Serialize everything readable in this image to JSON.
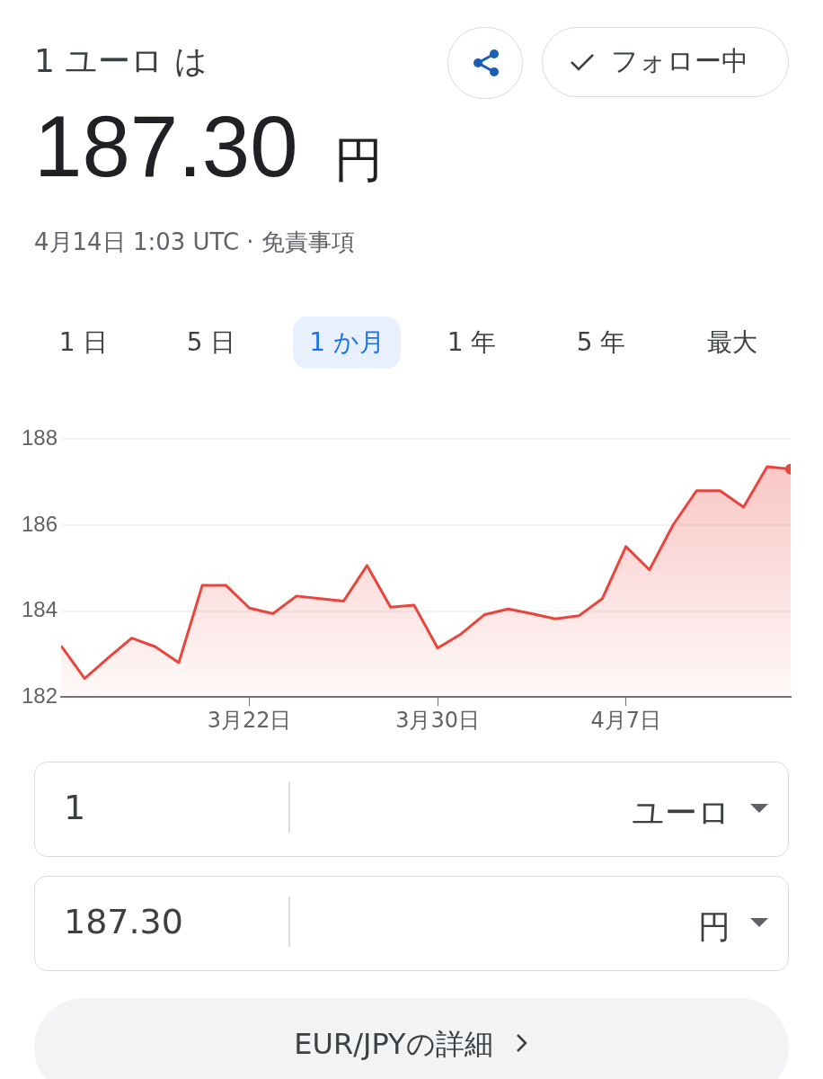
{
  "chart_data": {
    "type": "area",
    "title": "1 ユーロ は",
    "subtitle": "187.30 円",
    "annotations": [
      "4月14日 1:03 UTC · 免責事項",
      "フォロー中",
      "1 日",
      "5 日",
      "1 か月",
      "1 年",
      "5 年",
      "最大",
      "1",
      "ユーロ",
      "187.30",
      "円",
      "EUR/JPYの詳細"
    ],
    "x": [
      "--03-14",
      "--03-15",
      "--03-16",
      "--03-17",
      "--03-18",
      "--03-19",
      "--03-20",
      "--03-21",
      "--03-22",
      "--03-23",
      "--03-24",
      "--03-25",
      "--03-26",
      "--03-27",
      "--03-28",
      "--03-29",
      "--03-30",
      "--03-31",
      "--04-01",
      "--04-02",
      "--04-03",
      "--04-04",
      "--04-05",
      "--04-06",
      "--04-07",
      "--04-08",
      "--04-09",
      "--04-10",
      "--04-11",
      "--04-12",
      "--04-13",
      "--04-14"
    ],
    "series": [
      {
        "color": "#e8453c",
        "values": [
          183.19,
          182.43,
          182.91,
          183.37,
          183.17,
          182.8,
          184.6,
          184.6,
          184.07,
          183.94,
          184.35,
          184.29,
          184.23,
          185.06,
          184.09,
          184.14,
          183.14,
          183.47,
          183.92,
          184.05,
          183.94,
          183.82,
          183.89,
          184.29,
          185.5,
          184.96,
          186.0,
          186.8,
          186.8,
          186.42,
          187.36,
          187.3
        ]
      }
    ],
    "xlim": [
      "--03-14",
      "--04-14"
    ],
    "xticks": [
      {
        "value": "--03-22",
        "label": "3月22日"
      },
      {
        "value": "--03-30",
        "label": "3月30日"
      },
      {
        "value": "--04-07",
        "label": "4月7日"
      }
    ],
    "ylim": [
      182,
      188
    ],
    "yticks": [
      182,
      184,
      186,
      188
    ],
    "grid": "y"
  }
}
